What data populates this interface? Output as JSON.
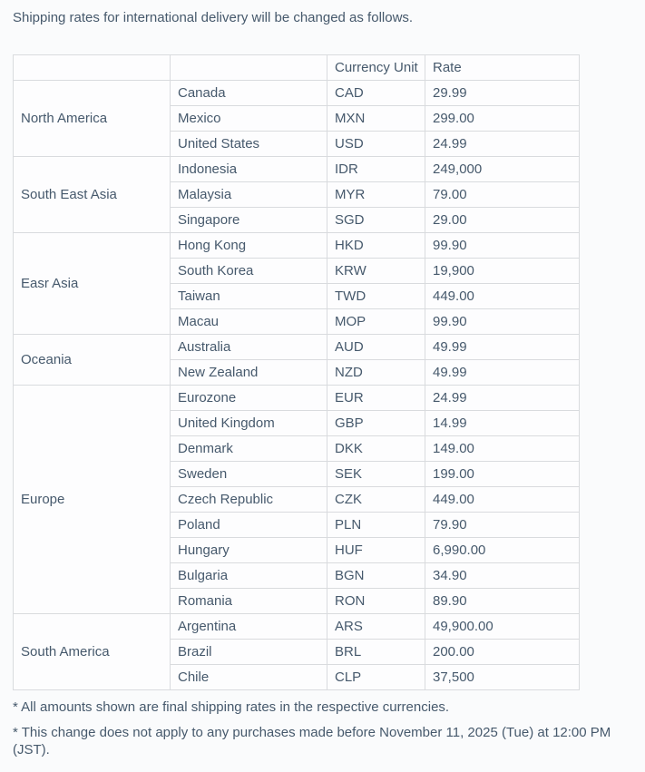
{
  "page": {
    "intro": "Shipping rates for international delivery will be changed as follows.",
    "notes": [
      "* All amounts shown are final shipping rates in the respective currencies.",
      "* This change does not apply to any purchases made before November 11, 2025 (Tue) at 12:00 PM (JST)."
    ]
  },
  "table": {
    "headers": {
      "region": "",
      "country": "",
      "currency": "Currency Unit",
      "rate": "Rate"
    },
    "groups": [
      {
        "region": "North America",
        "rows": [
          {
            "country": "Canada",
            "currency": "CAD",
            "rate": "29.99"
          },
          {
            "country": "Mexico",
            "currency": "MXN",
            "rate": "299.00"
          },
          {
            "country": "United States",
            "currency": "USD",
            "rate": "24.99"
          }
        ]
      },
      {
        "region": "South East Asia",
        "rows": [
          {
            "country": "Indonesia",
            "currency": "IDR",
            "rate": "249,000"
          },
          {
            "country": "Malaysia",
            "currency": "MYR",
            "rate": "79.00"
          },
          {
            "country": "Singapore",
            "currency": "SGD",
            "rate": "29.00"
          }
        ]
      },
      {
        "region": "Easr Asia",
        "rows": [
          {
            "country": "Hong Kong",
            "currency": "HKD",
            "rate": "99.90"
          },
          {
            "country": "South Korea",
            "currency": "KRW",
            "rate": "19,900"
          },
          {
            "country": "Taiwan",
            "currency": "TWD",
            "rate": "449.00"
          },
          {
            "country": "Macau",
            "currency": "MOP",
            "rate": "99.90"
          }
        ]
      },
      {
        "region": "Oceania",
        "rows": [
          {
            "country": "Australia",
            "currency": "AUD",
            "rate": "49.99"
          },
          {
            "country": "New Zealand",
            "currency": "NZD",
            "rate": "49.99"
          }
        ]
      },
      {
        "region": "Europe",
        "rows": [
          {
            "country": "Eurozone",
            "currency": "EUR",
            "rate": "24.99"
          },
          {
            "country": "United Kingdom",
            "currency": "GBP",
            "rate": "14.99"
          },
          {
            "country": "Denmark",
            "currency": "DKK",
            "rate": "149.00"
          },
          {
            "country": "Sweden",
            "currency": "SEK",
            "rate": "199.00"
          },
          {
            "country": "Czech Republic",
            "currency": "CZK",
            "rate": "449.00"
          },
          {
            "country": "Poland",
            "currency": "PLN",
            "rate": "79.90"
          },
          {
            "country": "Hungary",
            "currency": "HUF",
            "rate": "6,990.00"
          },
          {
            "country": "Bulgaria",
            "currency": "BGN",
            "rate": "34.90"
          },
          {
            "country": "Romania",
            "currency": "RON",
            "rate": "89.90"
          }
        ]
      },
      {
        "region": "South America",
        "rows": [
          {
            "country": "Argentina",
            "currency": "ARS",
            "rate": "49,900.00"
          },
          {
            "country": "Brazil",
            "currency": "BRL",
            "rate": "200.00"
          },
          {
            "country": "Chile",
            "currency": "CLP",
            "rate": "37,500"
          }
        ]
      }
    ]
  },
  "colors": {
    "text": "#46596c",
    "border": "#d9dbde",
    "cell_background": "#fdfdfe",
    "page_background": "#fafbfc"
  }
}
